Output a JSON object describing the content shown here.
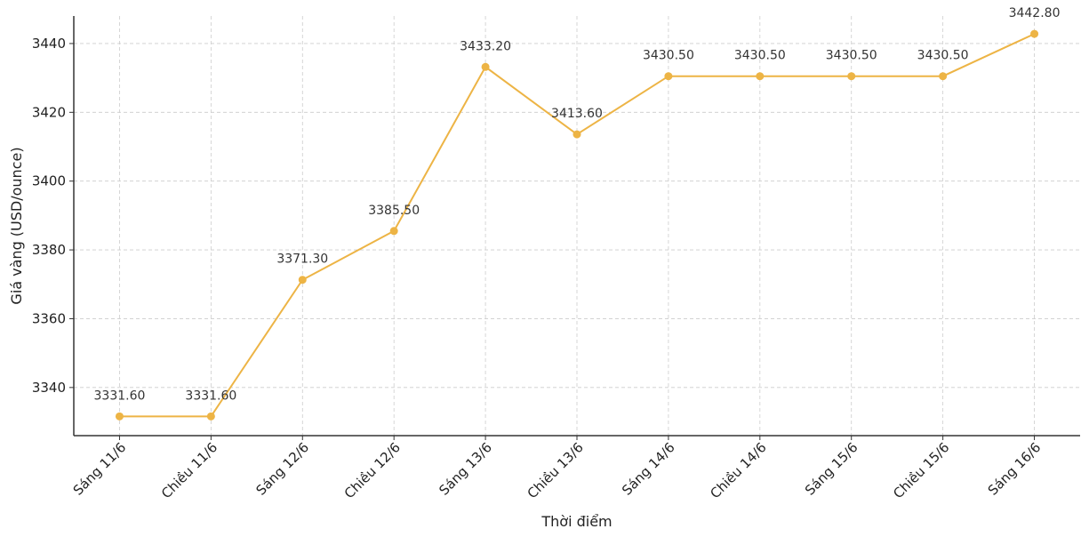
{
  "chart_data": {
    "type": "line",
    "title": "",
    "xlabel": "Thời điểm",
    "ylabel": "Giá vàng (USD/ounce)",
    "categories": [
      "Sáng 11/6",
      "Chiều 11/6",
      "Sáng 12/6",
      "Chiều 12/6",
      "Sáng 13/6",
      "Chiều 13/6",
      "Sáng 14/6",
      "Chiều 14/6",
      "Sáng 15/6",
      "Chiều 15/6",
      "Sáng 16/6"
    ],
    "values": [
      3331.6,
      3331.6,
      3371.3,
      3385.5,
      3433.2,
      3413.6,
      3430.5,
      3430.5,
      3430.5,
      3430.5,
      3442.8
    ],
    "data_labels": [
      "3331.60",
      "3331.60",
      "3371.30",
      "3385.50",
      "3433.20",
      "3413.60",
      "3430.50",
      "3430.50",
      "3430.50",
      "3430.50",
      "3442.80"
    ],
    "yticks": [
      3340,
      3360,
      3380,
      3400,
      3420,
      3440
    ],
    "ylim": [
      3326,
      3448
    ],
    "grid": true,
    "marker": "circle",
    "color": "#EDB445"
  }
}
